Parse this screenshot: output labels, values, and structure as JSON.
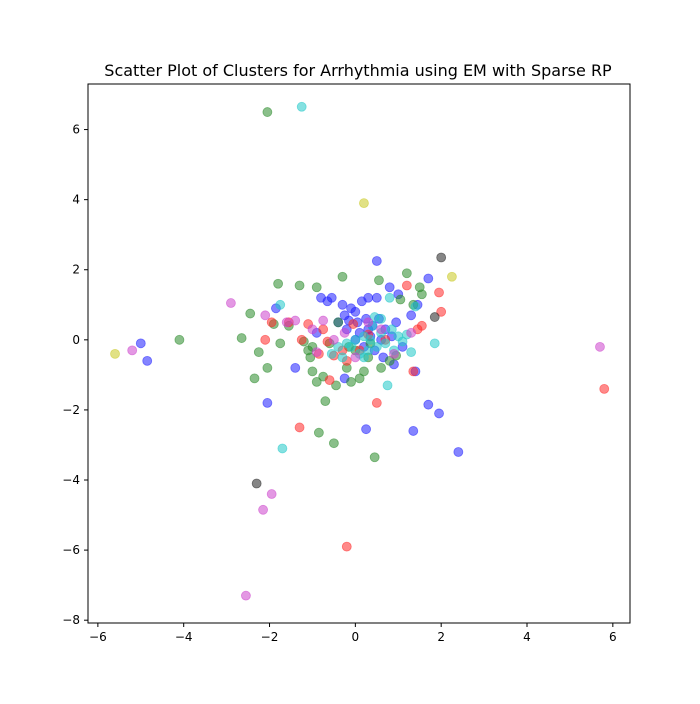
{
  "chart_data": {
    "type": "scatter",
    "title": "Scatter Plot of Clusters for Arrhythmia using EM with Sparse RP",
    "xlabel": "",
    "ylabel": "",
    "xlim": [
      -6.23,
      6.4
    ],
    "ylim": [
      -8.08,
      7.3
    ],
    "xticks": [
      -6,
      -4,
      -2,
      0,
      2,
      4,
      6
    ],
    "yticks": [
      -8,
      -6,
      -4,
      -2,
      0,
      2,
      4,
      6
    ],
    "grid": false,
    "legend": "none",
    "marker_alpha": 0.55,
    "series": [
      {
        "color": "#1f1fff",
        "points": [
          [
            -5.0,
            -0.1
          ],
          [
            -4.85,
            -0.6
          ],
          [
            -2.05,
            -1.8
          ],
          [
            -1.4,
            -0.8
          ],
          [
            -1.85,
            0.9
          ],
          [
            -0.9,
            0.2
          ],
          [
            -0.8,
            1.2
          ],
          [
            -0.65,
            1.1
          ],
          [
            -0.55,
            1.2
          ],
          [
            -0.4,
            0.5
          ],
          [
            -0.3,
            1.0
          ],
          [
            -0.25,
            0.7
          ],
          [
            -0.2,
            0.3
          ],
          [
            -0.1,
            0.9
          ],
          [
            0.0,
            0.8
          ],
          [
            0.05,
            0.5
          ],
          [
            0.1,
            0.2
          ],
          [
            0.15,
            1.1
          ],
          [
            0.2,
            -0.2
          ],
          [
            0.25,
            0.6
          ],
          [
            0.3,
            1.2
          ],
          [
            0.35,
            0.1
          ],
          [
            0.4,
            0.4
          ],
          [
            0.45,
            -0.3
          ],
          [
            0.5,
            1.2
          ],
          [
            0.5,
            2.25
          ],
          [
            0.55,
            0.6
          ],
          [
            0.6,
            0.0
          ],
          [
            0.65,
            -0.5
          ],
          [
            0.7,
            0.3
          ],
          [
            0.8,
            1.5
          ],
          [
            0.85,
            0.1
          ],
          [
            0.9,
            -0.7
          ],
          [
            0.95,
            0.5
          ],
          [
            1.0,
            1.3
          ],
          [
            1.1,
            -0.2
          ],
          [
            1.3,
            0.7
          ],
          [
            1.4,
            -0.9
          ],
          [
            1.45,
            1.0
          ],
          [
            1.7,
            1.75
          ],
          [
            1.7,
            -1.85
          ],
          [
            1.95,
            -2.1
          ],
          [
            2.4,
            -3.2
          ],
          [
            1.35,
            -2.6
          ],
          [
            0.25,
            -2.55
          ],
          [
            -0.25,
            -1.1
          ],
          [
            0.0,
            0.0
          ],
          [
            0.3,
            0.3
          ],
          [
            -0.15,
            0.55
          ]
        ]
      },
      {
        "color": "#2a8a2a",
        "points": [
          [
            -4.1,
            0.0
          ],
          [
            -2.65,
            0.05
          ],
          [
            -2.45,
            0.75
          ],
          [
            -2.35,
            -1.1
          ],
          [
            -2.25,
            -0.35
          ],
          [
            -2.05,
            -0.8
          ],
          [
            -2.05,
            6.5
          ],
          [
            -1.9,
            0.45
          ],
          [
            -1.8,
            1.6
          ],
          [
            -1.75,
            -0.1
          ],
          [
            -1.55,
            0.4
          ],
          [
            -1.3,
            1.55
          ],
          [
            -1.2,
            -0.05
          ],
          [
            -1.1,
            -0.3
          ],
          [
            -1.05,
            -0.5
          ],
          [
            -1.0,
            -0.9
          ],
          [
            -0.9,
            -1.2
          ],
          [
            -0.9,
            1.5
          ],
          [
            -0.85,
            -2.65
          ],
          [
            -0.75,
            -1.05
          ],
          [
            -0.7,
            -1.75
          ],
          [
            -0.6,
            -0.1
          ],
          [
            -0.5,
            -2.95
          ],
          [
            -0.45,
            -1.3
          ],
          [
            -0.4,
            0.5
          ],
          [
            -0.3,
            1.8
          ],
          [
            -0.2,
            -0.8
          ],
          [
            -0.1,
            -1.2
          ],
          [
            0.0,
            -0.3
          ],
          [
            0.1,
            -1.1
          ],
          [
            0.2,
            -0.9
          ],
          [
            0.3,
            -0.5
          ],
          [
            0.45,
            -3.35
          ],
          [
            0.55,
            1.7
          ],
          [
            0.6,
            -0.8
          ],
          [
            0.8,
            -0.6
          ],
          [
            0.95,
            -0.45
          ],
          [
            1.05,
            1.15
          ],
          [
            1.2,
            1.9
          ],
          [
            1.35,
            1.0
          ],
          [
            1.5,
            1.5
          ],
          [
            1.55,
            1.3
          ],
          [
            -0.15,
            -0.2
          ],
          [
            0.35,
            -0.1
          ],
          [
            -1.0,
            -0.2
          ]
        ]
      },
      {
        "color": "#ff2a2a",
        "points": [
          [
            -2.1,
            0.0
          ],
          [
            -1.95,
            0.5
          ],
          [
            -1.55,
            0.5
          ],
          [
            -1.3,
            -2.5
          ],
          [
            -1.25,
            0.0
          ],
          [
            -1.1,
            0.45
          ],
          [
            -0.85,
            -0.4
          ],
          [
            -0.75,
            0.3
          ],
          [
            -0.65,
            -0.05
          ],
          [
            -0.6,
            -1.15
          ],
          [
            -0.5,
            -0.45
          ],
          [
            -0.3,
            -0.3
          ],
          [
            -0.2,
            -0.6
          ],
          [
            -0.2,
            -5.9
          ],
          [
            -0.05,
            0.45
          ],
          [
            0.1,
            -0.3
          ],
          [
            0.3,
            0.15
          ],
          [
            0.5,
            -1.8
          ],
          [
            0.7,
            0.0
          ],
          [
            1.2,
            1.55
          ],
          [
            1.35,
            -0.9
          ],
          [
            1.45,
            0.3
          ],
          [
            1.55,
            0.4
          ],
          [
            1.95,
            1.35
          ],
          [
            2.0,
            0.8
          ],
          [
            5.8,
            -1.4
          ]
        ]
      },
      {
        "color": "#20c8c8",
        "points": [
          [
            -1.75,
            1.0
          ],
          [
            -1.7,
            -3.1
          ],
          [
            -1.25,
            6.65
          ],
          [
            -0.55,
            -0.4
          ],
          [
            -0.4,
            -0.2
          ],
          [
            -0.3,
            -0.5
          ],
          [
            -0.2,
            -0.1
          ],
          [
            -0.1,
            -0.2
          ],
          [
            0.0,
            0.0
          ],
          [
            0.1,
            -0.4
          ],
          [
            0.2,
            0.1
          ],
          [
            0.3,
            -0.3
          ],
          [
            0.4,
            0.4
          ],
          [
            0.5,
            -0.2
          ],
          [
            0.6,
            0.2
          ],
          [
            0.7,
            -0.1
          ],
          [
            0.75,
            -1.3
          ],
          [
            0.8,
            1.2
          ],
          [
            0.85,
            0.3
          ],
          [
            0.9,
            -0.3
          ],
          [
            1.0,
            0.1
          ],
          [
            1.1,
            -0.05
          ],
          [
            1.2,
            0.15
          ],
          [
            1.3,
            -0.35
          ],
          [
            1.4,
            0.95
          ],
          [
            1.85,
            -0.1
          ],
          [
            0.45,
            0.65
          ],
          [
            0.2,
            -0.5
          ],
          [
            0.6,
            0.6
          ],
          [
            0.35,
            0.0
          ]
        ]
      },
      {
        "color": "#cc44cc",
        "points": [
          [
            -5.2,
            -0.3
          ],
          [
            -2.9,
            1.05
          ],
          [
            -2.1,
            0.7
          ],
          [
            -2.55,
            -7.3
          ],
          [
            -2.15,
            -4.85
          ],
          [
            -1.95,
            -4.4
          ],
          [
            -1.4,
            0.55
          ],
          [
            -1.0,
            0.3
          ],
          [
            -0.75,
            0.55
          ],
          [
            -0.5,
            0.0
          ],
          [
            -0.25,
            0.2
          ],
          [
            0.0,
            -0.5
          ],
          [
            0.3,
            0.5
          ],
          [
            0.6,
            0.3
          ],
          [
            0.9,
            -0.4
          ],
          [
            1.3,
            0.2
          ],
          [
            5.7,
            -0.2
          ],
          [
            -1.6,
            0.5
          ],
          [
            -0.9,
            -0.35
          ]
        ]
      },
      {
        "color": "#c8c820",
        "points": [
          [
            -5.6,
            -0.4
          ],
          [
            0.2,
            3.9
          ],
          [
            2.25,
            1.8
          ]
        ]
      },
      {
        "color": "#222222",
        "points": [
          [
            -2.3,
            -4.1
          ],
          [
            2.0,
            2.35
          ],
          [
            1.85,
            0.65
          ]
        ]
      }
    ]
  }
}
